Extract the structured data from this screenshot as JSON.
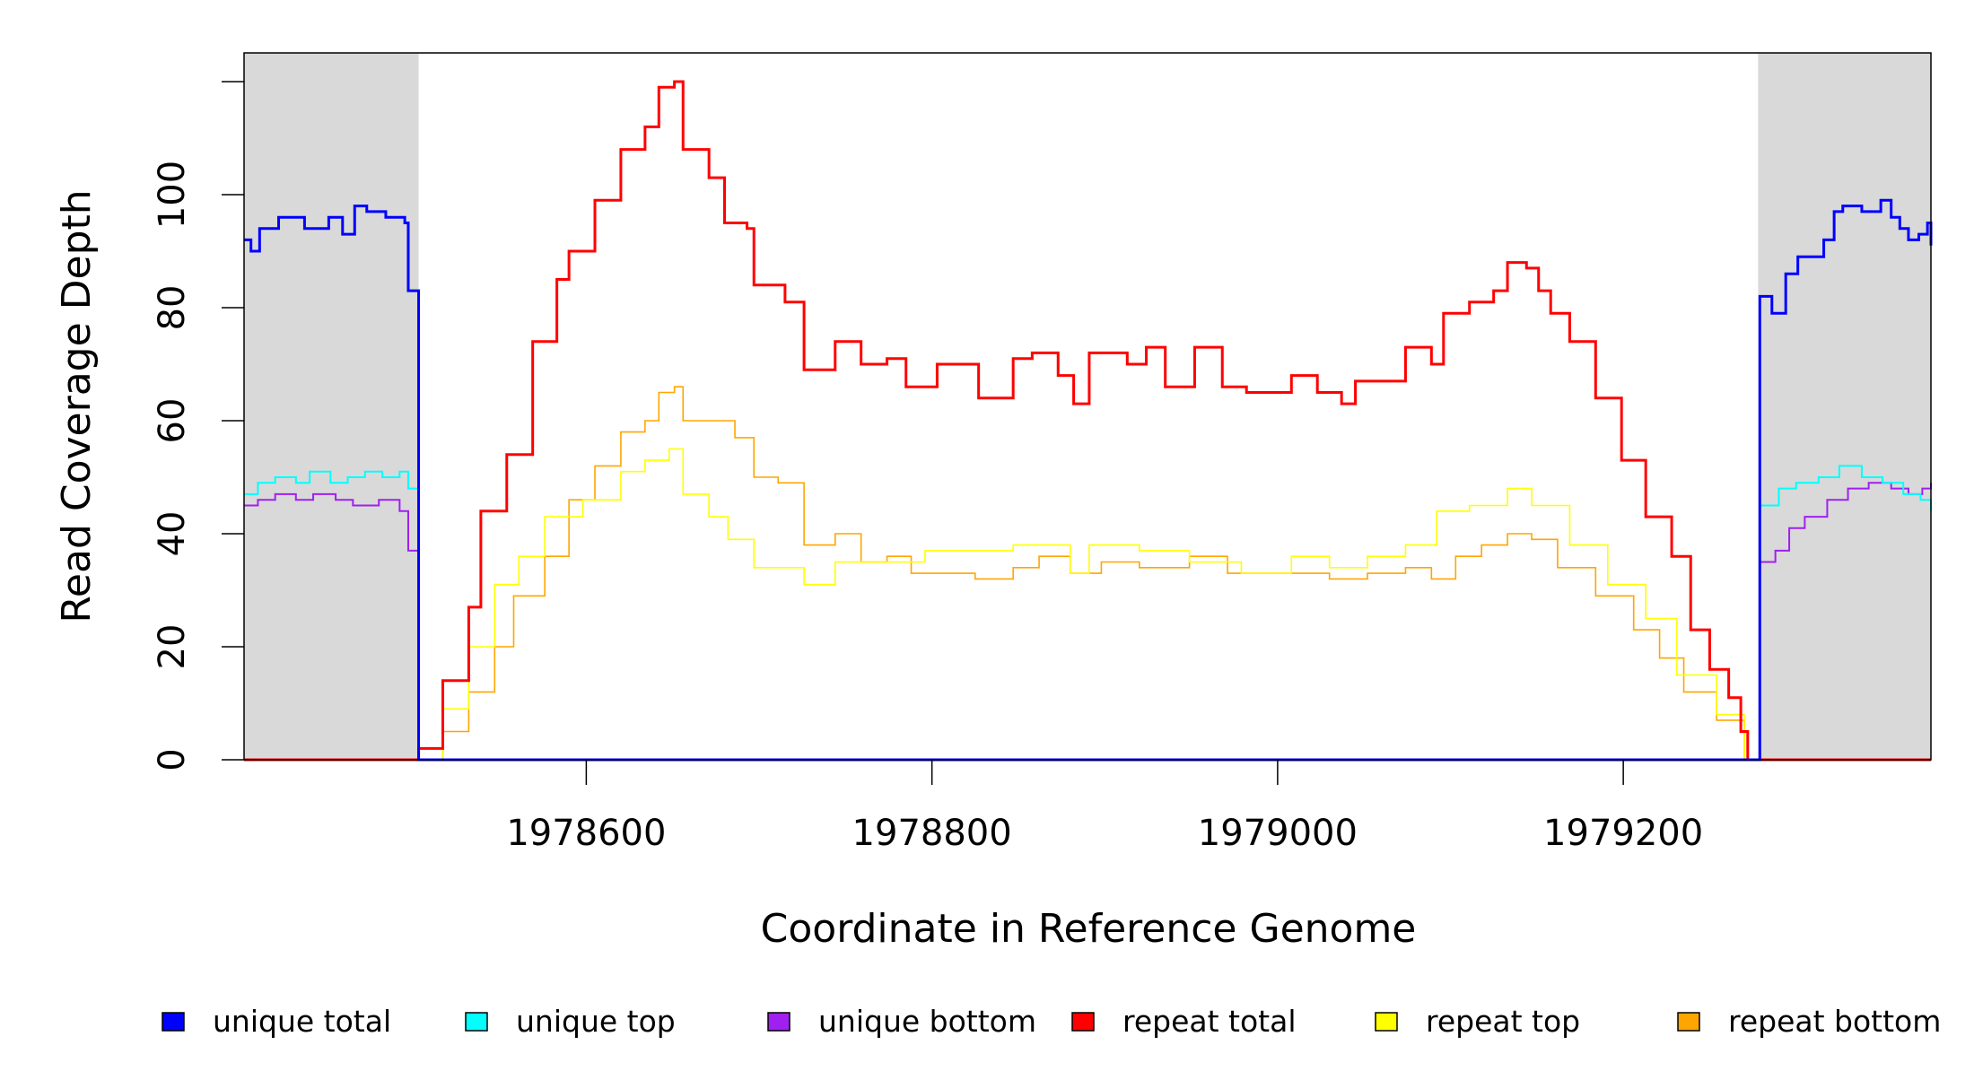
{
  "chart_data": {
    "type": "line",
    "title": "",
    "xlabel": "Coordinate in Reference Genome",
    "ylabel": "Read Coverage Depth",
    "xlim": [
      1978402,
      1979378
    ],
    "ylim": [
      0,
      125
    ],
    "xticks": [
      1978600,
      1978800,
      1979000,
      1979200
    ],
    "xtick_labels": [
      "1978600",
      "1978800",
      "1979000",
      "1979200"
    ],
    "yticks": [
      0,
      20,
      40,
      60,
      80,
      100,
      120
    ],
    "ytick_labels": [
      "0",
      "20",
      "40",
      "60",
      "80",
      "100",
      ""
    ],
    "shaded_regions": [
      [
        1978402,
        1978503
      ],
      [
        1979278,
        1979378
      ]
    ],
    "shade_color": "#d9d9d9",
    "legend_position": "bottom",
    "series": [
      {
        "name": "unique total",
        "color": "#0000ff",
        "width": 3,
        "points": [
          [
            1978402,
            92
          ],
          [
            1978406,
            90
          ],
          [
            1978411,
            94
          ],
          [
            1978422,
            96
          ],
          [
            1978437,
            94
          ],
          [
            1978451,
            96
          ],
          [
            1978459,
            93
          ],
          [
            1978466,
            98
          ],
          [
            1978473,
            97
          ],
          [
            1978484,
            96
          ],
          [
            1978495,
            95
          ],
          [
            1978497,
            83
          ],
          [
            1978503,
            0
          ],
          [
            1979278,
            0
          ],
          [
            1979279,
            82
          ],
          [
            1979286,
            79
          ],
          [
            1979294,
            86
          ],
          [
            1979301,
            89
          ],
          [
            1979316,
            92
          ],
          [
            1979322,
            97
          ],
          [
            1979327,
            98
          ],
          [
            1979338,
            97
          ],
          [
            1979349,
            99
          ],
          [
            1979355,
            96
          ],
          [
            1979360,
            94
          ],
          [
            1979365,
            92
          ],
          [
            1979371,
            93
          ],
          [
            1979376,
            95
          ],
          [
            1979378,
            91
          ]
        ]
      },
      {
        "name": "unique top",
        "color": "#00ffff",
        "width": 2,
        "points": [
          [
            1978402,
            47
          ],
          [
            1978410,
            49
          ],
          [
            1978420,
            50
          ],
          [
            1978432,
            49
          ],
          [
            1978440,
            51
          ],
          [
            1978452,
            49
          ],
          [
            1978462,
            50
          ],
          [
            1978472,
            51
          ],
          [
            1978482,
            50
          ],
          [
            1978492,
            51
          ],
          [
            1978497,
            48
          ],
          [
            1978503,
            0
          ],
          [
            1979278,
            0
          ],
          [
            1979279,
            45
          ],
          [
            1979290,
            48
          ],
          [
            1979300,
            49
          ],
          [
            1979313,
            50
          ],
          [
            1979325,
            52
          ],
          [
            1979338,
            50
          ],
          [
            1979350,
            49
          ],
          [
            1979362,
            47
          ],
          [
            1979372,
            46
          ],
          [
            1979378,
            44
          ]
        ]
      },
      {
        "name": "unique bottom",
        "color": "#a020f0",
        "width": 2,
        "points": [
          [
            1978402,
            45
          ],
          [
            1978410,
            46
          ],
          [
            1978420,
            47
          ],
          [
            1978432,
            46
          ],
          [
            1978442,
            47
          ],
          [
            1978455,
            46
          ],
          [
            1978465,
            45
          ],
          [
            1978480,
            46
          ],
          [
            1978492,
            44
          ],
          [
            1978497,
            37
          ],
          [
            1978503,
            0
          ],
          [
            1979278,
            0
          ],
          [
            1979279,
            35
          ],
          [
            1979288,
            37
          ],
          [
            1979296,
            41
          ],
          [
            1979305,
            43
          ],
          [
            1979318,
            46
          ],
          [
            1979330,
            48
          ],
          [
            1979342,
            49
          ],
          [
            1979355,
            48
          ],
          [
            1979365,
            47
          ],
          [
            1979373,
            48
          ],
          [
            1979378,
            49
          ]
        ]
      },
      {
        "name": "repeat total",
        "color": "#ff0000",
        "width": 3,
        "points": [
          [
            1978503,
            2
          ],
          [
            1978517,
            14
          ],
          [
            1978532,
            27
          ],
          [
            1978539,
            44
          ],
          [
            1978554,
            54
          ],
          [
            1978569,
            74
          ],
          [
            1978583,
            85
          ],
          [
            1978590,
            90
          ],
          [
            1978605,
            99
          ],
          [
            1978620,
            108
          ],
          [
            1978634,
            112
          ],
          [
            1978642,
            119
          ],
          [
            1978651,
            120
          ],
          [
            1978656,
            108
          ],
          [
            1978671,
            103
          ],
          [
            1978680,
            95
          ],
          [
            1978693,
            94
          ],
          [
            1978697,
            84
          ],
          [
            1978715,
            81
          ],
          [
            1978726,
            69
          ],
          [
            1978744,
            74
          ],
          [
            1978759,
            70
          ],
          [
            1978774,
            71
          ],
          [
            1978785,
            66
          ],
          [
            1978803,
            70
          ],
          [
            1978827,
            64
          ],
          [
            1978847,
            71
          ],
          [
            1978858,
            72
          ],
          [
            1978873,
            68
          ],
          [
            1978882,
            63
          ],
          [
            1978891,
            72
          ],
          [
            1978913,
            70
          ],
          [
            1978924,
            73
          ],
          [
            1978935,
            66
          ],
          [
            1978952,
            73
          ],
          [
            1978968,
            66
          ],
          [
            1978982,
            65
          ],
          [
            1979008,
            68
          ],
          [
            1979023,
            65
          ],
          [
            1979037,
            63
          ],
          [
            1979045,
            67
          ],
          [
            1979059,
            67
          ],
          [
            1979074,
            73
          ],
          [
            1979089,
            70
          ],
          [
            1979096,
            79
          ],
          [
            1979111,
            81
          ],
          [
            1979125,
            83
          ],
          [
            1979133,
            88
          ],
          [
            1979144,
            87
          ],
          [
            1979151,
            83
          ],
          [
            1979158,
            79
          ],
          [
            1979169,
            74
          ],
          [
            1979184,
            64
          ],
          [
            1979199,
            53
          ],
          [
            1979213,
            43
          ],
          [
            1979228,
            36
          ],
          [
            1979239,
            23
          ],
          [
            1979250,
            16
          ],
          [
            1979261,
            11
          ],
          [
            1979268,
            5
          ],
          [
            1979272,
            0
          ]
        ]
      },
      {
        "name": "repeat top",
        "color": "#ffff00",
        "width": 1.6,
        "points": [
          [
            1978503,
            0
          ],
          [
            1978517,
            9
          ],
          [
            1978532,
            20
          ],
          [
            1978547,
            31
          ],
          [
            1978561,
            36
          ],
          [
            1978576,
            43
          ],
          [
            1978598,
            46
          ],
          [
            1978620,
            51
          ],
          [
            1978634,
            53
          ],
          [
            1978648,
            55
          ],
          [
            1978656,
            47
          ],
          [
            1978671,
            43
          ],
          [
            1978682,
            39
          ],
          [
            1978697,
            34
          ],
          [
            1978726,
            31
          ],
          [
            1978744,
            35
          ],
          [
            1978774,
            35
          ],
          [
            1978796,
            37
          ],
          [
            1978825,
            37
          ],
          [
            1978847,
            38
          ],
          [
            1978880,
            33
          ],
          [
            1978891,
            38
          ],
          [
            1978920,
            37
          ],
          [
            1978949,
            35
          ],
          [
            1978979,
            33
          ],
          [
            1979008,
            36
          ],
          [
            1979030,
            34
          ],
          [
            1979052,
            36
          ],
          [
            1979074,
            38
          ],
          [
            1979092,
            44
          ],
          [
            1979111,
            45
          ],
          [
            1979133,
            48
          ],
          [
            1979147,
            45
          ],
          [
            1979169,
            38
          ],
          [
            1979191,
            31
          ],
          [
            1979213,
            25
          ],
          [
            1979231,
            15
          ],
          [
            1979254,
            8
          ],
          [
            1979270,
            0
          ]
        ]
      },
      {
        "name": "repeat bottom",
        "color": "#ffa500",
        "width": 1.6,
        "points": [
          [
            1978503,
            0
          ],
          [
            1978517,
            5
          ],
          [
            1978532,
            12
          ],
          [
            1978547,
            20
          ],
          [
            1978558,
            29
          ],
          [
            1978576,
            36
          ],
          [
            1978590,
            46
          ],
          [
            1978605,
            52
          ],
          [
            1978620,
            58
          ],
          [
            1978634,
            60
          ],
          [
            1978642,
            65
          ],
          [
            1978651,
            66
          ],
          [
            1978656,
            60
          ],
          [
            1978678,
            60
          ],
          [
            1978686,
            57
          ],
          [
            1978697,
            50
          ],
          [
            1978711,
            49
          ],
          [
            1978726,
            38
          ],
          [
            1978744,
            40
          ],
          [
            1978759,
            35
          ],
          [
            1978774,
            36
          ],
          [
            1978788,
            33
          ],
          [
            1978825,
            32
          ],
          [
            1978847,
            34
          ],
          [
            1978862,
            36
          ],
          [
            1978880,
            33
          ],
          [
            1978898,
            35
          ],
          [
            1978920,
            34
          ],
          [
            1978949,
            36
          ],
          [
            1978971,
            33
          ],
          [
            1978993,
            33
          ],
          [
            1979030,
            32
          ],
          [
            1979052,
            33
          ],
          [
            1979074,
            34
          ],
          [
            1979089,
            32
          ],
          [
            1979103,
            36
          ],
          [
            1979118,
            38
          ],
          [
            1979133,
            40
          ],
          [
            1979147,
            39
          ],
          [
            1979162,
            34
          ],
          [
            1979184,
            29
          ],
          [
            1979206,
            23
          ],
          [
            1979221,
            18
          ],
          [
            1979235,
            12
          ],
          [
            1979254,
            7
          ],
          [
            1979270,
            0
          ]
        ]
      }
    ]
  }
}
